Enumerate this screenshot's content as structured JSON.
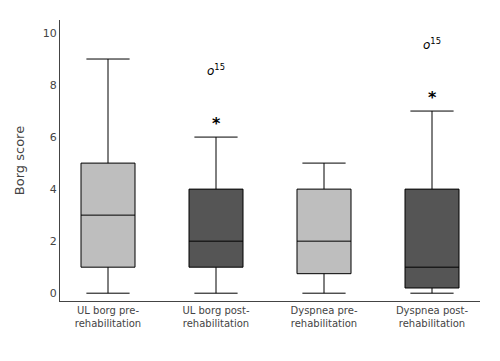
{
  "chart_data": {
    "type": "box",
    "ylabel": "Borg score",
    "categories": [
      "UL borg pre-\nrehabilitation",
      "UL borg post-\nrehabilitation",
      "Dyspnea pre-\nrehabilitation",
      "Dyspnea post-\nrehabilitation"
    ],
    "q1": [
      1.0,
      1.0,
      0.75,
      0.2
    ],
    "median": [
      3.0,
      2.0,
      2.0,
      1.0
    ],
    "q3": [
      5.0,
      4.0,
      4.0,
      4.0
    ],
    "whisker_low": [
      0.0,
      0.0,
      0.0,
      0.0
    ],
    "whisker_high": [
      9.0,
      6.0,
      5.0,
      7.0
    ],
    "outliers": [
      [],
      [
        8.5
      ],
      [],
      [
        9.5
      ]
    ],
    "outlier_label": "o",
    "outlier_superscript": "15",
    "asterisk": [
      false,
      true,
      false,
      true
    ],
    "asterisk_label": "*",
    "colors": [
      "#bebebe",
      "#555555",
      "#bebebe",
      "#555555"
    ],
    "ylim": [
      -0.3,
      10.5
    ],
    "yticks": [
      0,
      2,
      4,
      6,
      8,
      10
    ],
    "grid": false
  }
}
